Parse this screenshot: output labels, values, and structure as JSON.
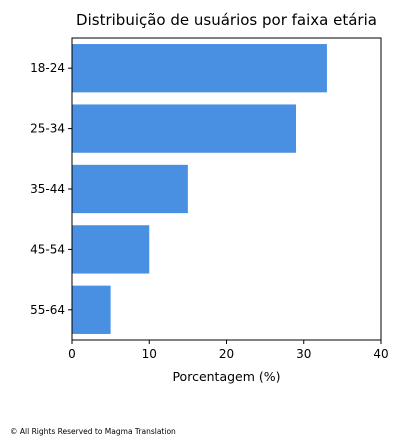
{
  "chart_data": {
    "type": "bar",
    "orientation": "horizontal",
    "title": "Distribuição de usuários por faixa etária",
    "xlabel": "Porcentagem (%)",
    "ylabel": "",
    "categories": [
      "18-24",
      "25-34",
      "35-44",
      "45-54",
      "55-64"
    ],
    "values": [
      33,
      29,
      15,
      10,
      5
    ],
    "xlim": [
      0,
      40
    ],
    "xticks": [
      "0",
      "10",
      "20",
      "30",
      "40"
    ],
    "bar_color": "#4a90e2",
    "grid": false,
    "legend": "none"
  },
  "footer": {
    "copyright": "© All Rights Reserved to Magma Translation"
  }
}
